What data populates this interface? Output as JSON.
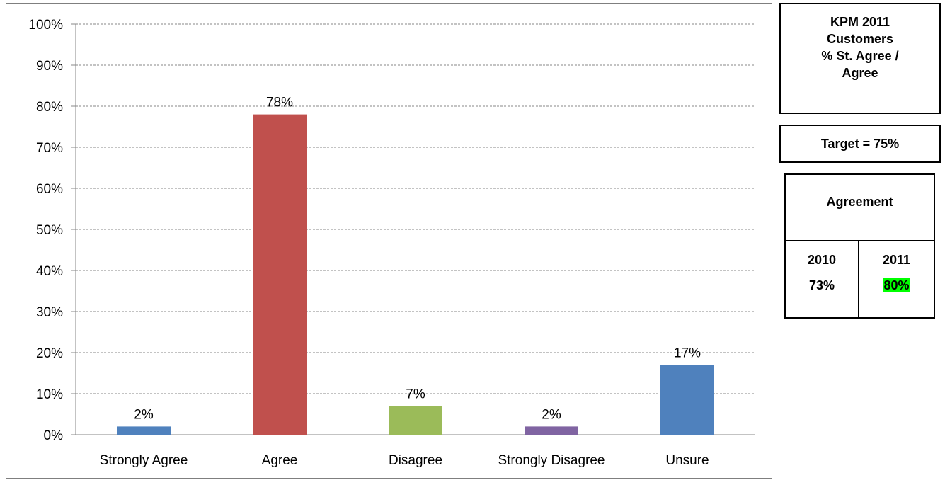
{
  "chart_data": {
    "type": "bar",
    "categories": [
      "Strongly Agree",
      "Agree",
      "Disagree",
      "Strongly Disagree",
      "Unsure"
    ],
    "values": [
      2,
      78,
      7,
      2,
      17
    ],
    "data_labels": [
      "2%",
      "78%",
      "7%",
      "2%",
      "17%"
    ],
    "bar_colors": [
      "#4f81bd",
      "#c0504d",
      "#9bbb59",
      "#8064a2",
      "#4f81bd"
    ],
    "ylim": [
      0,
      100
    ],
    "yticks": [
      0,
      10,
      20,
      30,
      40,
      50,
      60,
      70,
      80,
      90,
      100
    ],
    "ytick_labels": [
      "0%",
      "10%",
      "20%",
      "30%",
      "40%",
      "50%",
      "60%",
      "70%",
      "80%",
      "90%",
      "100%"
    ],
    "grid": true,
    "grid_style": "dashed",
    "legend": "none"
  },
  "kpm": {
    "lines": [
      "KPM 2011",
      "Customers",
      "% St. Agree /",
      "Agree"
    ]
  },
  "target": "Target = 75%",
  "agreement": {
    "title": "Agreement",
    "columns": [
      {
        "year": "2010",
        "value": "73%"
      },
      {
        "year": "2011",
        "value": "80%",
        "highlight_color": "#00ff00"
      }
    ]
  }
}
